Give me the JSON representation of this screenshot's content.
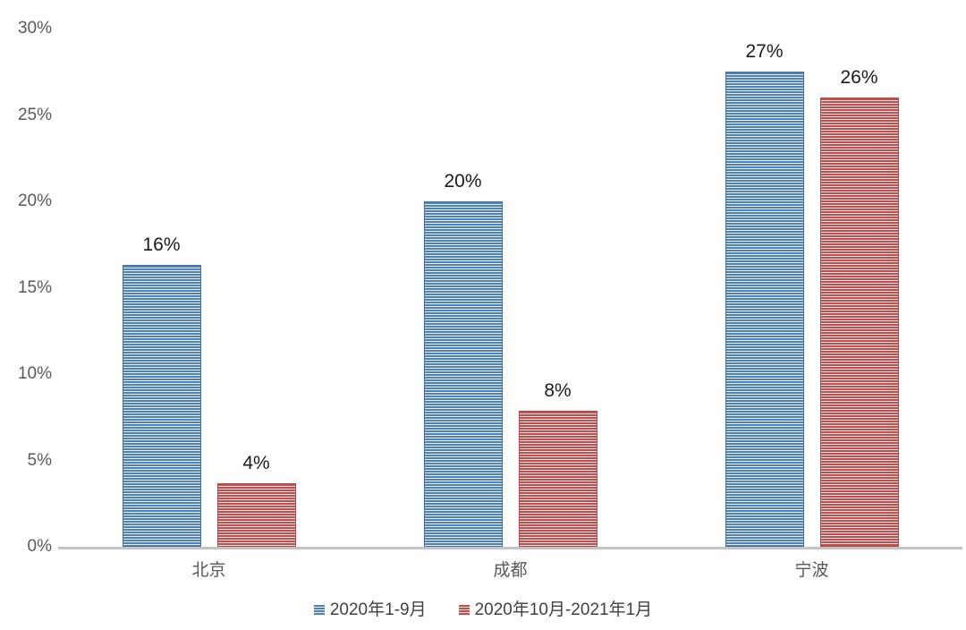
{
  "chart_data": {
    "type": "bar",
    "title": "",
    "xlabel": "",
    "ylabel": "",
    "categories": [
      "北京",
      "成都",
      "宁波"
    ],
    "category_keys": [
      "beijing",
      "chengdu",
      "ningbo"
    ],
    "series": [
      {
        "key": "2020-jan-sep",
        "name": "2020年1-9月",
        "color": "#4f81bd",
        "stripe_color": "#e9eff7",
        "border_color": "#4170a6",
        "values": [
          16,
          20,
          27
        ],
        "values_est": [
          16.3,
          20.0,
          27.5
        ],
        "data_labels": [
          "16%",
          "20%",
          "27%"
        ]
      },
      {
        "key": "2020-oct-2021-jan",
        "name": "2020年10月-2021年1月",
        "color": "#c0504d",
        "stripe_color": "#f6e3e2",
        "border_color": "#b14a47",
        "values": [
          4,
          8,
          26
        ],
        "values_est": [
          3.7,
          7.9,
          26.0
        ],
        "data_labels": [
          "4%",
          "8%",
          "26%"
        ]
      }
    ],
    "ylim": [
      0,
      30
    ],
    "ytick_step": 5,
    "yticks": [
      "0%",
      "5%",
      "10%",
      "15%",
      "20%",
      "25%",
      "30%"
    ],
    "grid": false,
    "legend_position": "bottom",
    "bar_pattern": "horizontal-stripes"
  },
  "colors": {
    "background": "#ffffff",
    "axis_line": "#c3c3c3",
    "tick_label": "#595959",
    "category_label": "#595959",
    "data_label": "#1a1a1a",
    "legend_text": "#404040"
  }
}
